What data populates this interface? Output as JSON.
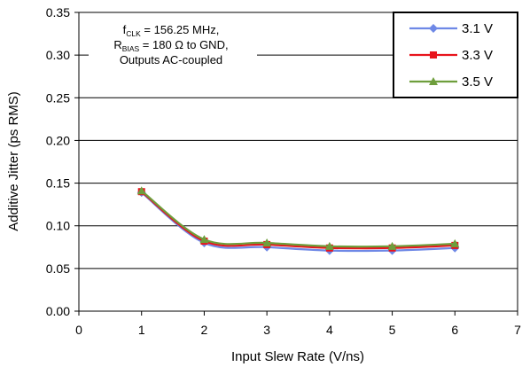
{
  "chart_data": {
    "type": "line",
    "xlabel": "Input Slew Rate (V/ns)",
    "ylabel": "Additive Jitter (ps RMS)",
    "xlim": [
      0,
      7
    ],
    "ylim": [
      0,
      0.35
    ],
    "x_ticks": [
      "0",
      "1",
      "2",
      "3",
      "4",
      "5",
      "6",
      "7"
    ],
    "y_ticks": [
      "0.00",
      "0.05",
      "0.10",
      "0.15",
      "0.20",
      "0.25",
      "0.30",
      "0.35"
    ],
    "grid": true,
    "legend_position": "top-right",
    "annotation": {
      "line1_prefix": "f",
      "line1_sub": "CLK",
      "line1_rest": " = 156.25 MHz,",
      "line2_prefix": "R",
      "line2_sub": "BIAS",
      "line2_rest": " = 180 Ω to GND,",
      "line3": "Outputs AC-coupled"
    },
    "x": [
      1,
      2,
      3,
      4,
      5,
      6
    ],
    "series": [
      {
        "name": "3.1 V",
        "color": "#6e88e6",
        "marker": "diamond",
        "values": [
          0.139,
          0.08,
          0.075,
          0.071,
          0.071,
          0.074
        ]
      },
      {
        "name": "3.3 V",
        "color": "#e8141c",
        "marker": "square",
        "values": [
          0.14,
          0.082,
          0.078,
          0.074,
          0.074,
          0.077
        ]
      },
      {
        "name": "3.5 V",
        "color": "#6e9e3c",
        "marker": "triangle",
        "values": [
          0.141,
          0.084,
          0.08,
          0.076,
          0.076,
          0.079
        ]
      }
    ]
  }
}
